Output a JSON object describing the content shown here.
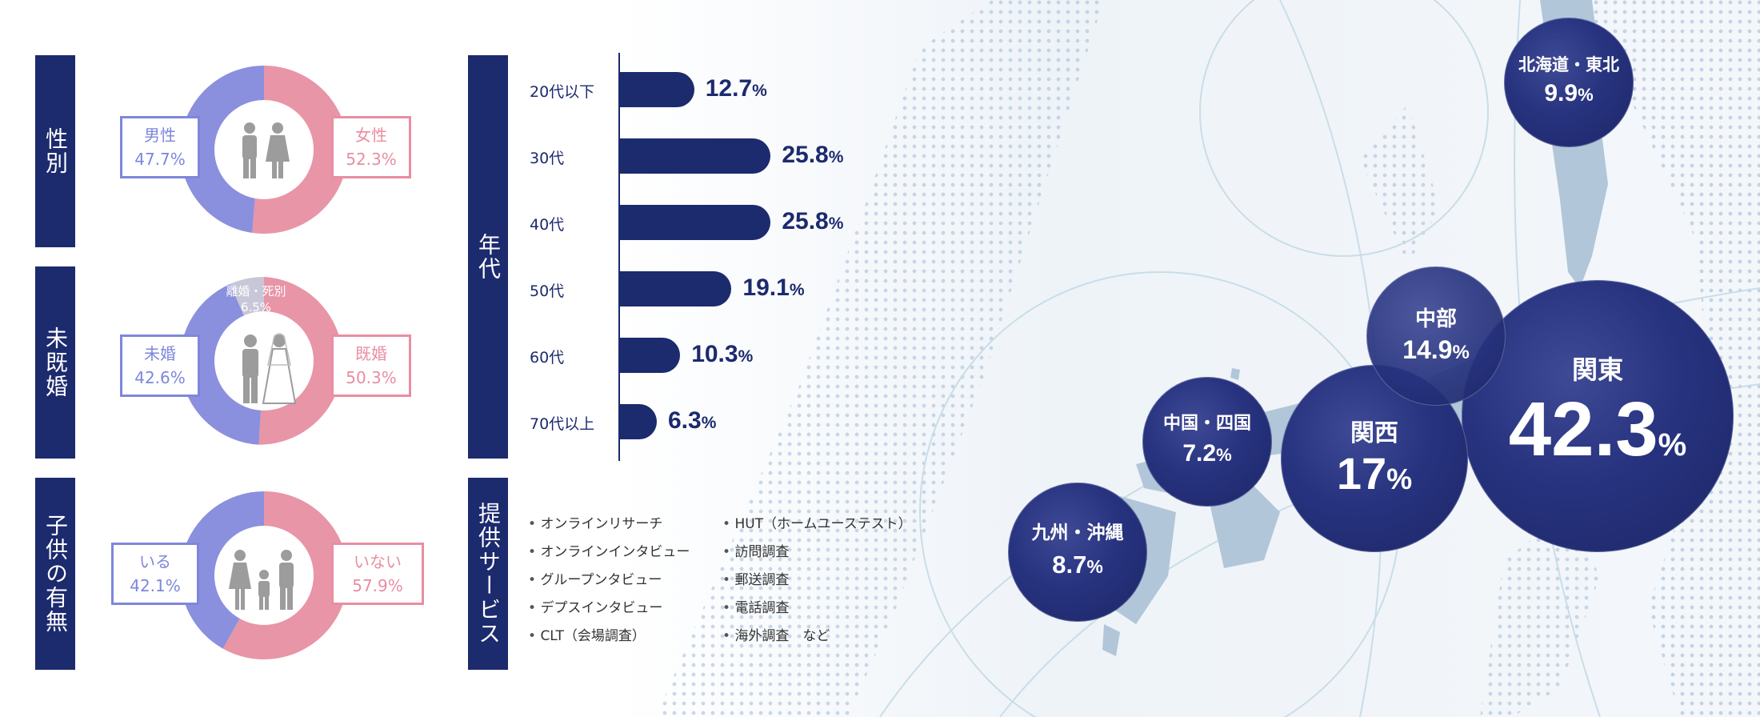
{
  "colors": {
    "navy": "#1c2a6e",
    "male": "#8a90de",
    "female": "#e895a7"
  },
  "gender": {
    "section_label": "性別",
    "left": {
      "label": "男性",
      "value": "47.7%",
      "pct": 47.7
    },
    "right": {
      "label": "女性",
      "value": "52.3%",
      "pct": 52.3
    },
    "icon": "couple-icon"
  },
  "marital": {
    "section_label": "未既婚",
    "left": {
      "label": "未婚",
      "value": "42.6%",
      "pct": 42.6
    },
    "right": {
      "label": "既婚",
      "value": "50.3%",
      "pct": 50.3
    },
    "top": {
      "label": "離婚・死別",
      "value": "6.5%",
      "pct": 6.5
    },
    "icon": "wedding-couple-icon"
  },
  "children": {
    "section_label": "子供の有無",
    "left": {
      "label": "いる",
      "value": "42.1%",
      "pct": 42.1
    },
    "right": {
      "label": "いない",
      "value": "57.9%",
      "pct": 57.9
    },
    "icon": "family-icon"
  },
  "age": {
    "section_label": "年代"
  },
  "services": {
    "section_label": "提供サービス",
    "col1": [
      "オンラインリサーチ",
      "オンラインインタビュー",
      "グループンタビュー",
      "デプスインタビュー",
      "CLT（会場調査）"
    ],
    "col2": [
      "HUT（ホームユーステスト）",
      "訪問調査",
      "郵送調査",
      "電話調査",
      "海外調査　など"
    ]
  },
  "regions": [
    {
      "name": "北海道・東北",
      "value": "9.9",
      "unit": "%"
    },
    {
      "name": "中部",
      "value": "14.9",
      "unit": "%"
    },
    {
      "name": "関東",
      "value": "42.3",
      "unit": "%"
    },
    {
      "name": "関西",
      "value": "17",
      "unit": "%"
    },
    {
      "name": "中国・四国",
      "value": "7.2",
      "unit": "%"
    },
    {
      "name": "九州・沖縄",
      "value": "8.7",
      "unit": "%"
    }
  ],
  "chart_data": [
    {
      "type": "pie",
      "title": "性別",
      "categories": [
        "男性",
        "女性"
      ],
      "values": [
        47.7,
        52.3
      ]
    },
    {
      "type": "pie",
      "title": "未既婚",
      "categories": [
        "未婚",
        "既婚",
        "離婚・死別"
      ],
      "values": [
        42.6,
        50.3,
        6.5
      ]
    },
    {
      "type": "pie",
      "title": "子供の有無",
      "categories": [
        "いる",
        "いない"
      ],
      "values": [
        42.1,
        57.9
      ]
    },
    {
      "type": "bar",
      "title": "年代",
      "categories": [
        "20代以下",
        "30代",
        "40代",
        "50代",
        "60代",
        "70代以上"
      ],
      "values": [
        12.7,
        25.8,
        25.8,
        19.1,
        10.3,
        6.3
      ],
      "value_labels": [
        "12.7",
        "25.8",
        "25.8",
        "19.1",
        "10.3",
        "6.3"
      ],
      "unit": "%"
    },
    {
      "type": "scatter",
      "title": "",
      "categories": [
        "北海道・東北",
        "中部",
        "関東",
        "関西",
        "中国・四国",
        "九州・沖縄"
      ],
      "values": [
        9.9,
        14.9,
        42.3,
        17,
        7.2,
        8.7
      ]
    }
  ]
}
